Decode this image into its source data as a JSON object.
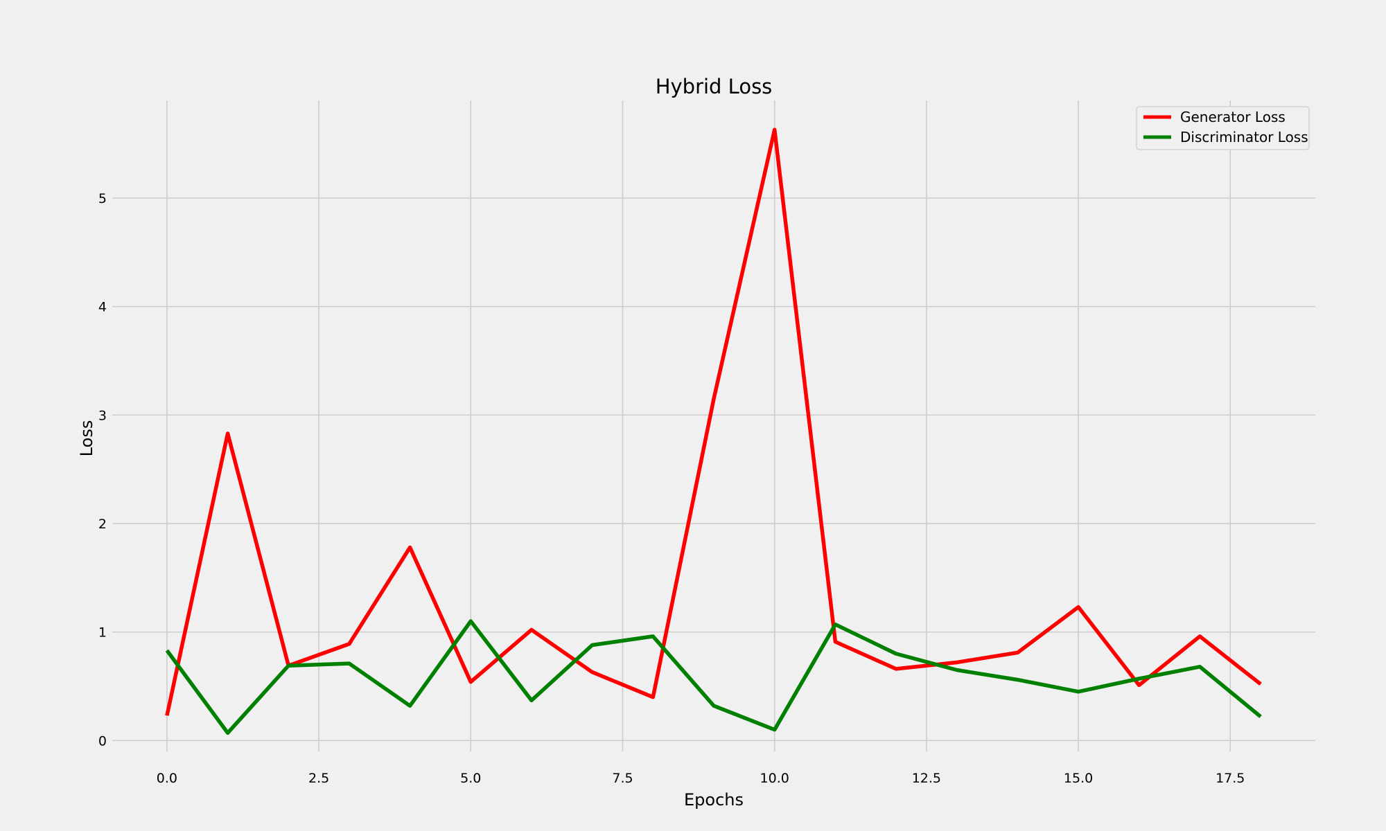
{
  "chart_data": {
    "type": "line",
    "title": "Hybrid Loss",
    "xlabel": "Epochs",
    "ylabel": "Loss",
    "xlim": [
      -0.9,
      18.9
    ],
    "ylim": [
      -0.1,
      5.9
    ],
    "xticks": [
      0.0,
      2.5,
      5.0,
      7.5,
      10.0,
      12.5,
      15.0,
      17.5
    ],
    "xtick_labels": [
      "0.0",
      "2.5",
      "5.0",
      "7.5",
      "10.0",
      "12.5",
      "15.0",
      "17.5"
    ],
    "yticks": [
      0,
      1,
      2,
      3,
      4,
      5
    ],
    "ytick_labels": [
      "0",
      "1",
      "2",
      "3",
      "4",
      "5"
    ],
    "grid": true,
    "legend_position": "top-right",
    "x": [
      0,
      1,
      2,
      3,
      4,
      5,
      6,
      7,
      8,
      9,
      10,
      11,
      12,
      13,
      14,
      15,
      16,
      17,
      18
    ],
    "series": [
      {
        "name": "Generator Loss",
        "color": "#ff0000",
        "values": [
          0.23,
          2.83,
          0.69,
          0.89,
          1.78,
          0.54,
          1.02,
          0.63,
          0.4,
          3.15,
          5.63,
          0.91,
          0.66,
          0.72,
          0.81,
          1.23,
          0.51,
          0.96,
          0.52
        ]
      },
      {
        "name": "Discriminator Loss",
        "color": "#008000",
        "values": [
          0.83,
          0.07,
          0.69,
          0.71,
          0.32,
          1.1,
          0.37,
          0.88,
          0.96,
          0.32,
          0.1,
          1.07,
          0.8,
          0.65,
          0.56,
          0.45,
          0.57,
          0.68,
          0.22
        ]
      }
    ]
  }
}
